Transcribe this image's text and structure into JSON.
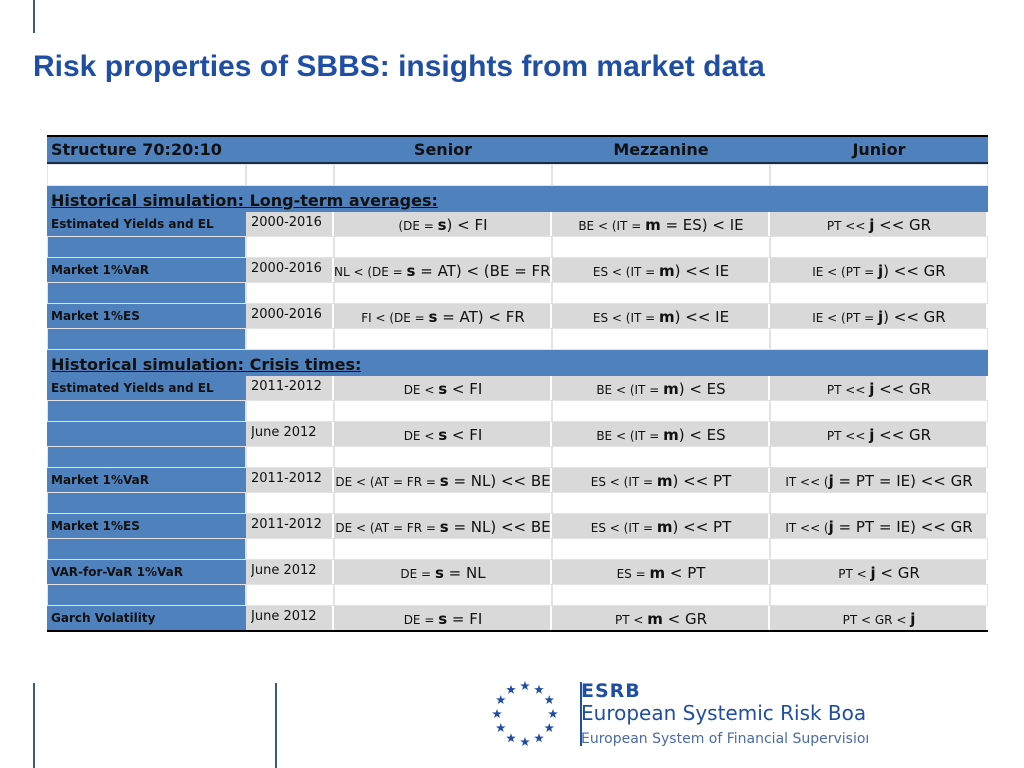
{
  "title": "Risk properties of SBBS: insights from market data",
  "table": {
    "header": [
      "Structure 70:20:10",
      "Senior",
      "Mezzanine",
      "Junior"
    ],
    "sections": [
      {
        "title": "Historical simulation: Long-term averages:",
        "rows": [
          {
            "label": "Estimated Yields and EL",
            "period": "2000-2016",
            "cells": [
              [
                "(DE = ",
                "s",
                ") < FI"
              ],
              [
                "BE < (IT = ",
                "m",
                " = ES) < IE"
              ],
              [
                "PT << ",
                "j",
                " << GR"
              ]
            ]
          },
          {
            "label": "Market 1%VaR",
            "period": "2000-2016",
            "cells": [
              [
                "NL < (DE = ",
                "s",
                " = AT) < (BE = FR)"
              ],
              [
                "ES < (IT = ",
                "m",
                ") << IE"
              ],
              [
                "IE < (PT = ",
                "j",
                ") << GR"
              ]
            ]
          },
          {
            "label": "Market 1%ES",
            "period": "2000-2016",
            "cells": [
              [
                "FI < (DE = ",
                "s",
                " = AT) < FR"
              ],
              [
                "ES < (IT = ",
                "m",
                ") << IE"
              ],
              [
                "IE < (PT = ",
                "j",
                ") << GR"
              ]
            ]
          }
        ]
      },
      {
        "title": "Historical simulation: Crisis times:",
        "rows": [
          {
            "label": "Estimated Yields and EL",
            "period": "2011-2012",
            "cells": [
              [
                "DE < ",
                "s",
                " < FI"
              ],
              [
                "BE < (IT = ",
                "m",
                ") < ES"
              ],
              [
                "PT << ",
                "j",
                " << GR"
              ]
            ]
          },
          {
            "label": null,
            "period": "June 2012",
            "cells": [
              [
                "DE < ",
                "s",
                " < FI"
              ],
              [
                "BE < (IT = ",
                "m",
                ") < ES"
              ],
              [
                "PT << ",
                "j",
                " << GR"
              ]
            ]
          },
          {
            "label": "Market 1%VaR",
            "period": "2011-2012",
            "cells": [
              [
                "DE < (AT = FR = ",
                "s",
                " = NL) << BE"
              ],
              [
                "ES < (IT = ",
                "m",
                ") << PT"
              ],
              [
                "IT << (",
                "j",
                " = PT = IE) << GR"
              ]
            ]
          },
          {
            "label": "Market 1%ES",
            "period": "2011-2012",
            "cells": [
              [
                "DE < (AT = FR = ",
                "s",
                " = NL) << BE"
              ],
              [
                "ES < (IT = ",
                "m",
                ") << PT"
              ],
              [
                "IT << (",
                "j",
                " = PT = IE) << GR"
              ]
            ]
          },
          {
            "label": "VAR-for-VaR 1%VaR",
            "period": "June 2012",
            "cells": [
              [
                "DE = ",
                "s",
                " = NL"
              ],
              [
                "ES = ",
                "m",
                " < PT"
              ],
              [
                "PT < ",
                "j",
                " < GR"
              ]
            ]
          },
          {
            "label": "Garch Volatility",
            "period": "June 2012",
            "cells": [
              [
                "DE = ",
                "s",
                " = FI"
              ],
              [
                "PT < ",
                "m",
                " < GR"
              ],
              [
                "PT < GR < ",
                "j"
              ]
            ]
          }
        ]
      }
    ]
  },
  "logo": {
    "acronym": "ESRB",
    "name": "European Systemic Risk Board",
    "subtitle": "European System of Financial Supervision"
  }
}
